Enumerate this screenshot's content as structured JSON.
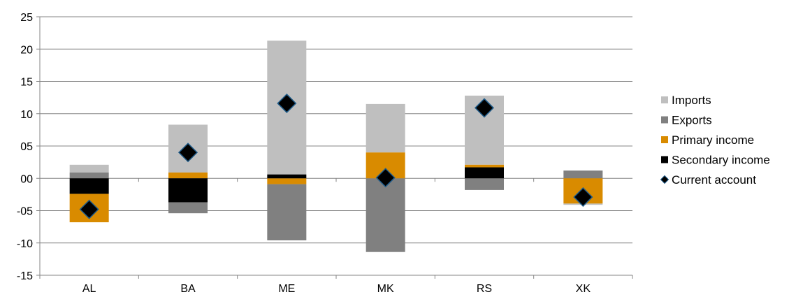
{
  "chart_data": {
    "type": "bar",
    "stacked": true,
    "categories": [
      "AL",
      "BA",
      "ME",
      "MK",
      "RS",
      "XK"
    ],
    "ylim": [
      -15,
      25
    ],
    "yticks": [
      -15,
      -10,
      -5,
      0,
      5,
      10,
      15,
      20,
      25
    ],
    "ytick_labels": [
      "-15",
      "-10",
      "-05",
      "00",
      "05",
      "10",
      "15",
      "20",
      "25"
    ],
    "grid": true,
    "legend_position": "right",
    "series": [
      {
        "name": "Imports",
        "color": "#BFBFBF",
        "kind": "bar",
        "segments": [
          [
            0.9,
            2.1
          ],
          [
            0.9,
            8.3
          ],
          [
            0.6,
            21.3
          ],
          [
            4.0,
            11.5
          ],
          [
            2.1,
            12.8
          ],
          [
            -3.9,
            -4.1
          ]
        ]
      },
      {
        "name": "Exports",
        "color": "#808080",
        "kind": "bar",
        "segments": [
          [
            0.0,
            0.9
          ],
          [
            -3.7,
            -5.4
          ],
          [
            -0.9,
            -9.6
          ],
          [
            0.0,
            -11.4
          ],
          [
            0.0,
            -1.8
          ],
          [
            0.0,
            1.2
          ]
        ]
      },
      {
        "name": "Primary income",
        "color": "#D98B00",
        "kind": "bar",
        "segments": [
          [
            -2.4,
            -6.8
          ],
          [
            0.0,
            0.9
          ],
          [
            0.0,
            -0.9
          ],
          [
            0.0,
            4.0
          ],
          [
            1.7,
            2.1
          ],
          [
            0.0,
            -3.9
          ]
        ]
      },
      {
        "name": "Secondary income",
        "color": "#000000",
        "kind": "bar",
        "segments": [
          [
            0.0,
            -2.4
          ],
          [
            0.0,
            -3.7
          ],
          [
            0.0,
            0.6
          ],
          [
            0.0,
            0.0
          ],
          [
            0.0,
            1.7
          ],
          [
            0.0,
            0.0
          ]
        ]
      },
      {
        "name": "Current account",
        "color": "#000000",
        "edge_color": "#1F5C8A",
        "kind": "marker",
        "values": [
          -4.8,
          4.0,
          11.6,
          0.1,
          10.9,
          -2.9
        ]
      }
    ]
  }
}
